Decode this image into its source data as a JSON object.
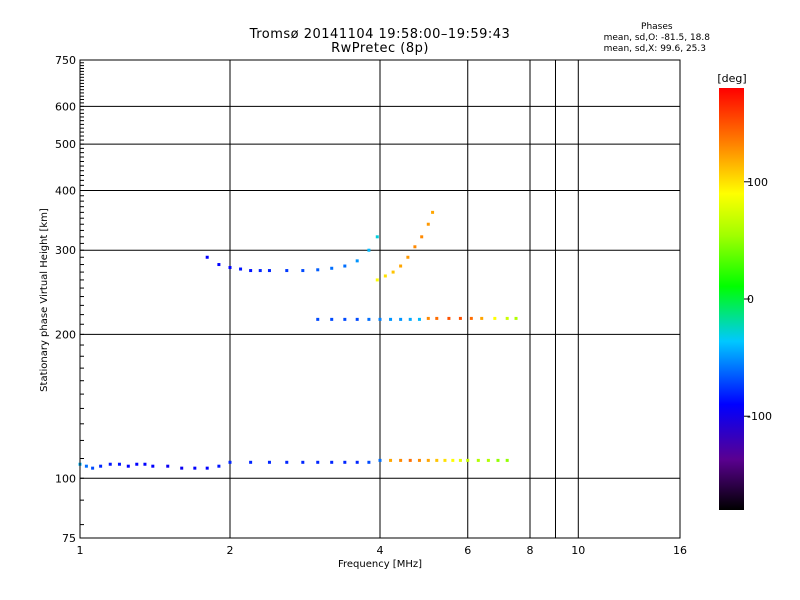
{
  "title": "Tromsø 20141104  19:58:00–19:59:43",
  "subtitle": "RwPretec (8p)",
  "stats": {
    "header": "Phases",
    "line_o": "mean, sd,O:  -81.5, 18.8",
    "line_x": "mean, sd,X:  99.6, 25.3"
  },
  "chart_data": {
    "type": "scatter",
    "xlabel": "Frequency [MHz]",
    "ylabel": "Stationary phase Virtual Height [km]",
    "x_scale": "log",
    "y_scale": "log",
    "xlim": [
      1,
      16
    ],
    "ylim": [
      75,
      750
    ],
    "x_ticks": [
      1,
      2,
      4,
      6,
      8,
      10,
      16
    ],
    "x_minor_ticks": [
      9
    ],
    "y_ticks": [
      75,
      100,
      200,
      300,
      400,
      500,
      600,
      750
    ],
    "grid": true,
    "colorbar": {
      "label": "[deg]",
      "range": [
        -180,
        180
      ],
      "ticks": [
        100,
        0,
        -100
      ]
    },
    "traces": [
      {
        "x": [
          1.0,
          1.03,
          1.06,
          1.1,
          1.15,
          1.2,
          1.25,
          1.3,
          1.35,
          1.4,
          1.5,
          1.6,
          1.7,
          1.8,
          1.9,
          2.0,
          2.2,
          2.4,
          2.6,
          2.8,
          3.0,
          3.2,
          3.4,
          3.6,
          3.8,
          4.0,
          4.2,
          4.4,
          4.6,
          4.8,
          5.0,
          5.2,
          5.4,
          5.6,
          5.8,
          6.0,
          6.3,
          6.6,
          6.9,
          7.2
        ],
        "y": [
          107,
          106,
          105,
          106,
          107,
          107,
          106,
          107,
          107,
          106,
          106,
          105,
          105,
          105,
          106,
          108,
          108,
          108,
          108,
          108,
          108,
          108,
          108,
          108,
          108,
          109,
          109,
          109,
          109,
          109,
          109,
          109,
          109,
          109,
          109,
          109,
          109,
          109,
          109,
          109
        ],
        "phase": [
          -40,
          -60,
          -70,
          -80,
          -85,
          -85,
          -90,
          -90,
          -90,
          -90,
          -95,
          -95,
          -90,
          -90,
          -85,
          -80,
          -80,
          -80,
          -80,
          -80,
          -80,
          -80,
          -80,
          -80,
          -70,
          -60,
          120,
          130,
          140,
          130,
          120,
          110,
          100,
          90,
          80,
          70,
          60,
          60,
          50,
          50
        ]
      },
      {
        "x": [
          3.0,
          3.2,
          3.4,
          3.6,
          3.8,
          4.0,
          4.2,
          4.4,
          4.6,
          4.8,
          5.0,
          5.2,
          5.5,
          5.8,
          6.1,
          6.4,
          6.8,
          7.2,
          7.5
        ],
        "y": [
          215,
          215,
          215,
          215,
          215,
          215,
          215,
          215,
          215,
          215,
          216,
          216,
          216,
          216,
          216,
          216,
          216,
          216,
          216
        ],
        "phase": [
          -70,
          -70,
          -70,
          -70,
          -60,
          -55,
          -50,
          -50,
          -45,
          -40,
          130,
          140,
          150,
          150,
          140,
          120,
          90,
          70,
          60
        ]
      },
      {
        "x": [
          1.8,
          1.9,
          2.0,
          2.1,
          2.2,
          2.3,
          2.4,
          2.6,
          2.8,
          3.0,
          3.2,
          3.4,
          3.6,
          3.8,
          3.95
        ],
        "y": [
          290,
          280,
          276,
          274,
          272,
          272,
          272,
          272,
          272,
          273,
          275,
          278,
          285,
          300,
          320
        ],
        "phase": [
          -90,
          -90,
          -90,
          -85,
          -85,
          -80,
          -80,
          -75,
          -70,
          -65,
          -60,
          -60,
          -50,
          -40,
          -30
        ]
      },
      {
        "x": [
          3.95,
          4.1,
          4.25,
          4.4,
          4.55,
          4.7,
          4.85,
          5.0,
          5.1
        ],
        "y": [
          260,
          265,
          270,
          278,
          290,
          305,
          320,
          340,
          360
        ],
        "phase": [
          90,
          100,
          110,
          120,
          125,
          130,
          130,
          125,
          120
        ]
      }
    ]
  }
}
